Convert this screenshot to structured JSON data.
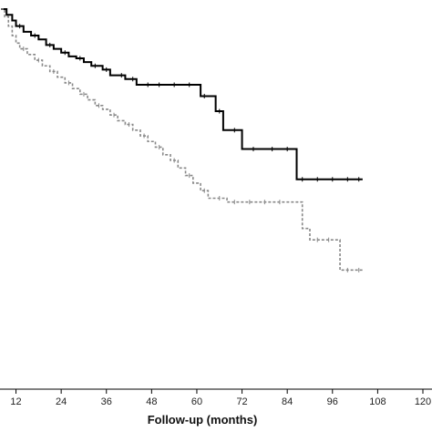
{
  "chart_data": {
    "type": "line",
    "step": true,
    "xlabel": "Follow-up (months)",
    "ylabel": "",
    "xlim": [
      8,
      120
    ],
    "ylim": [
      0,
      1
    ],
    "x_ticks": [
      12,
      24,
      36,
      48,
      60,
      72,
      84,
      96,
      108,
      120
    ],
    "x_tick_labels": [
      "12",
      "24",
      "36",
      "48",
      "60",
      "72",
      "84",
      "96",
      "108",
      "120"
    ],
    "grid": false,
    "legend": "none",
    "series": [
      {
        "style": "solid",
        "color": "#000000",
        "x": [
          8,
          9.5,
          11,
          12,
          14,
          16,
          18,
          20,
          22,
          24,
          26,
          28,
          30,
          32,
          35,
          37,
          41,
          44,
          61,
          65,
          67,
          72,
          86.5,
          104
        ],
        "y": [
          1.0,
          0.985,
          0.97,
          0.955,
          0.94,
          0.93,
          0.92,
          0.905,
          0.895,
          0.885,
          0.875,
          0.87,
          0.86,
          0.85,
          0.84,
          0.825,
          0.815,
          0.8,
          0.77,
          0.73,
          0.68,
          0.63,
          0.55,
          0.55
        ],
        "censor_x": [
          13,
          17,
          21,
          25,
          29,
          33,
          36,
          40,
          43,
          47,
          50,
          54,
          58,
          62,
          66,
          70,
          75,
          80,
          84,
          88,
          92,
          96,
          100,
          103
        ]
      },
      {
        "style": "dashed",
        "color": "#888888",
        "x": [
          8,
          9,
          10,
          11,
          12,
          13,
          15,
          17,
          19,
          21,
          23,
          25,
          27,
          29,
          31,
          33,
          35,
          37,
          39,
          41,
          43,
          45,
          47,
          49,
          51,
          53,
          55,
          57,
          59,
          61,
          63,
          68,
          88,
          90,
          98,
          104
        ],
        "y": [
          1.0,
          0.98,
          0.955,
          0.93,
          0.91,
          0.895,
          0.88,
          0.865,
          0.85,
          0.835,
          0.82,
          0.805,
          0.79,
          0.775,
          0.76,
          0.745,
          0.735,
          0.72,
          0.705,
          0.695,
          0.68,
          0.665,
          0.65,
          0.635,
          0.615,
          0.6,
          0.58,
          0.56,
          0.54,
          0.52,
          0.5,
          0.49,
          0.42,
          0.39,
          0.31,
          0.31
        ],
        "censor_x": [
          14,
          18,
          22,
          26,
          30,
          34,
          38,
          42,
          46,
          50,
          54,
          58,
          62,
          66,
          70,
          74,
          78,
          82,
          92,
          95,
          100,
          103
        ]
      }
    ]
  }
}
